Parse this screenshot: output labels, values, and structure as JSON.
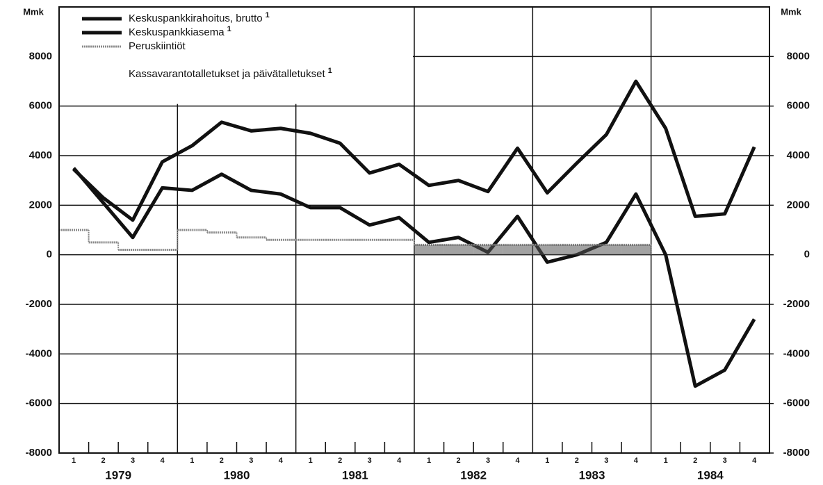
{
  "chart_data": {
    "type": "line",
    "y_unit_left": "Mmk",
    "y_unit_right": "Mmk",
    "categories": [
      "1",
      "2",
      "3",
      "4",
      "1",
      "2",
      "3",
      "4",
      "1",
      "2",
      "3",
      "4",
      "1",
      "2",
      "3",
      "4",
      "1",
      "2",
      "3",
      "4",
      "1",
      "2",
      "3",
      "4"
    ],
    "years": [
      "1979",
      "1980",
      "1981",
      "1982",
      "1983",
      "1984"
    ],
    "series": [
      {
        "name": "Keskuspankkirahoitus, brutto",
        "superscript": "1",
        "color": "#111111",
        "style": "line",
        "values": [
          3450,
          2300,
          1400,
          3750,
          4400,
          5350,
          5000,
          5100,
          4900,
          4500,
          3300,
          3650,
          2800,
          3000,
          2550,
          4300,
          2500,
          3700,
          4850,
          7000,
          5100,
          1550,
          1650,
          4350
        ]
      },
      {
        "name": "Keskuspankkiasema",
        "superscript": "1",
        "color": "#111111",
        "style": "line",
        "values": [
          3500,
          2100,
          700,
          2700,
          2600,
          3250,
          2600,
          2450,
          1900,
          1900,
          1200,
          1500,
          500,
          700,
          100,
          1550,
          -300,
          0,
          500,
          2450,
          0,
          -5300,
          -4650,
          -2600
        ]
      },
      {
        "name": "Peruskiintiöt",
        "color": "#888888",
        "style": "step",
        "values": [
          1000,
          500,
          200,
          200,
          1000,
          900,
          700,
          600,
          600,
          600,
          600,
          600,
          400,
          400,
          400,
          400,
          400,
          400,
          400,
          400,
          null,
          null,
          null,
          null
        ]
      },
      {
        "name": "Kassavarantotalletukset ja päivätalletukset",
        "superscript": "1",
        "color": "#555555",
        "style": "band",
        "values": [
          null,
          null,
          null,
          null,
          null,
          null,
          null,
          null,
          null,
          null,
          null,
          null,
          400,
          400,
          400,
          400,
          400,
          400,
          400,
          400,
          null,
          null,
          null,
          null
        ]
      }
    ],
    "ylim": [
      -8000,
      10000
    ],
    "yticks": [
      -8000,
      -6000,
      -4000,
      -2000,
      0,
      2000,
      4000,
      6000,
      8000
    ],
    "y2lim": [
      -8000,
      10000
    ],
    "y2ticks": [
      -8000,
      -6000,
      -4000,
      -2000,
      0,
      2000,
      4000,
      6000,
      8000
    ],
    "grid": true
  }
}
